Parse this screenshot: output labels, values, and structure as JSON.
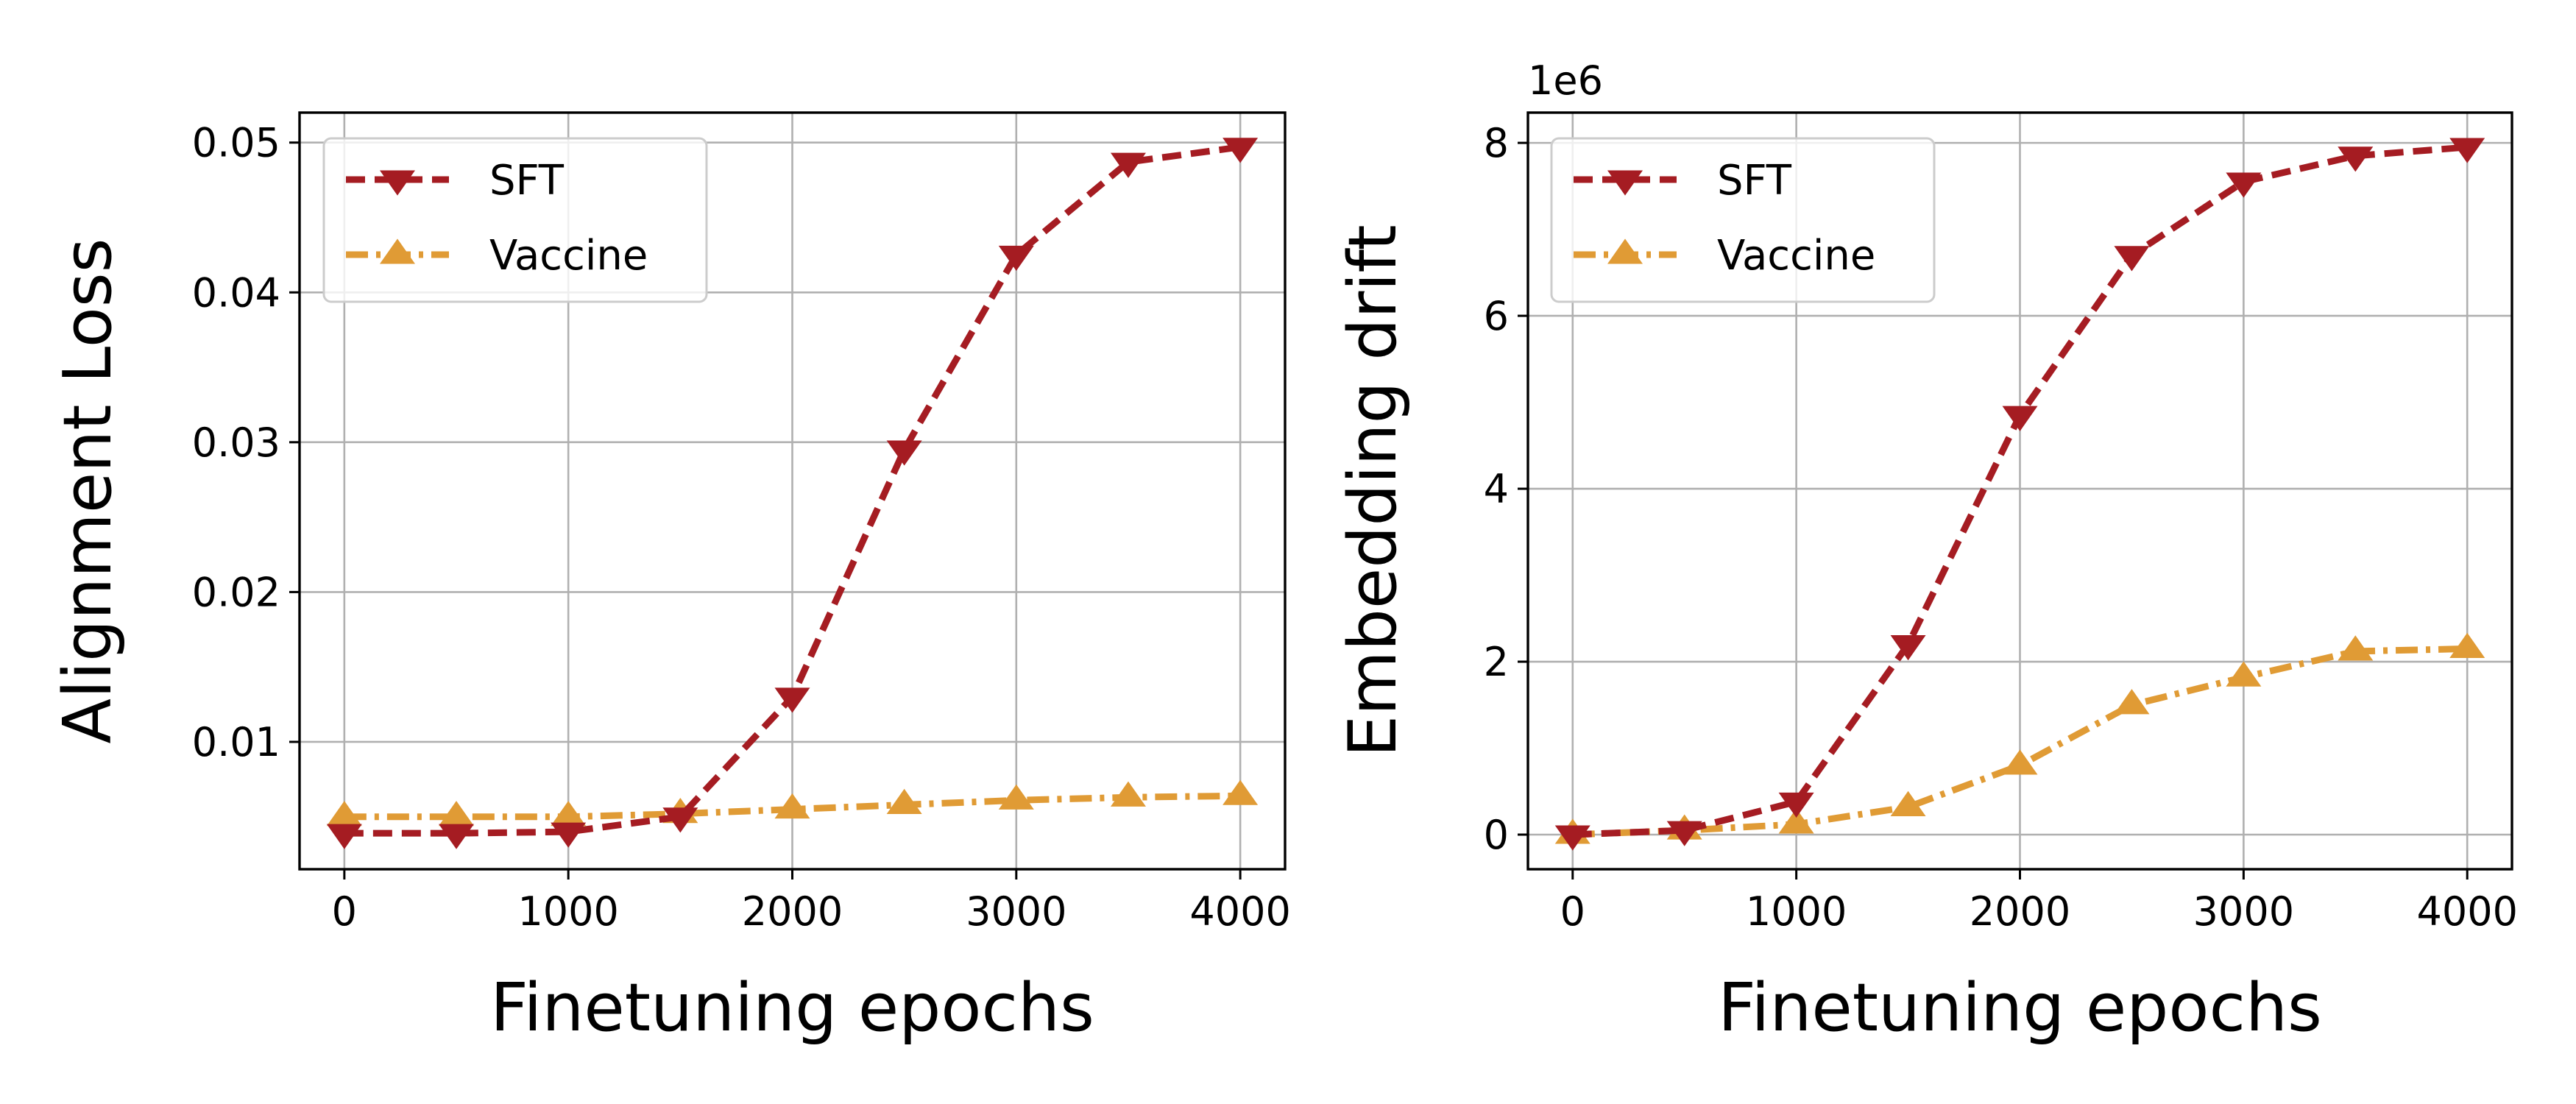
{
  "colors": {
    "SFT": "#a51c22",
    "Vaccine": "#e09b35"
  },
  "chart_data": [
    {
      "type": "line",
      "xlabel": "Finetuning epochs",
      "ylabel": "Alignment Loss",
      "xlim": [
        -200,
        4200
      ],
      "ylim": [
        0.0015,
        0.052
      ],
      "xticks": [
        0,
        1000,
        2000,
        3000,
        4000
      ],
      "xtick_labels": [
        "0",
        "1000",
        "2000",
        "3000",
        "4000"
      ],
      "yticks": [
        0.01,
        0.02,
        0.03,
        0.04,
        0.05
      ],
      "ytick_labels": [
        "0.01",
        "0.02",
        "0.03",
        "0.04",
        "0.05"
      ],
      "offset_label": "",
      "grid": true,
      "legend_position": "top-left",
      "x": [
        0,
        500,
        1000,
        1500,
        2000,
        2500,
        3000,
        3500,
        4000
      ],
      "series": [
        {
          "name": "SFT",
          "marker": "down-triangle",
          "linestyle": "dashed",
          "values": [
            0.0039,
            0.0039,
            0.004,
            0.005,
            0.013,
            0.0295,
            0.0425,
            0.0487,
            0.0497
          ]
        },
        {
          "name": "Vaccine",
          "marker": "up-triangle",
          "linestyle": "dashdot",
          "values": [
            0.005,
            0.005,
            0.005,
            0.0052,
            0.0055,
            0.0058,
            0.0061,
            0.0063,
            0.0064
          ]
        }
      ]
    },
    {
      "type": "line",
      "xlabel": "Finetuning epochs",
      "ylabel": "Embedding drift",
      "xlim": [
        -200,
        4200
      ],
      "ylim": [
        -0.4,
        8.35
      ],
      "xticks": [
        0,
        1000,
        2000,
        3000,
        4000
      ],
      "xtick_labels": [
        "0",
        "1000",
        "2000",
        "3000",
        "4000"
      ],
      "yticks": [
        0,
        2,
        4,
        6,
        8
      ],
      "ytick_labels": [
        "0",
        "2",
        "4",
        "6",
        "8"
      ],
      "offset_label": "1e6",
      "grid": true,
      "legend_position": "top-left",
      "x": [
        0,
        500,
        1000,
        1500,
        2000,
        2500,
        3000,
        3500,
        4000
      ],
      "series": [
        {
          "name": "SFT",
          "marker": "down-triangle",
          "linestyle": "dashed",
          "values": [
            0.0,
            0.05,
            0.38,
            2.2,
            4.85,
            6.7,
            7.55,
            7.85,
            7.95
          ]
        },
        {
          "name": "Vaccine",
          "marker": "up-triangle",
          "linestyle": "dashdot",
          "values": [
            0.0,
            0.05,
            0.12,
            0.32,
            0.8,
            1.5,
            1.82,
            2.12,
            2.15
          ]
        }
      ]
    }
  ]
}
